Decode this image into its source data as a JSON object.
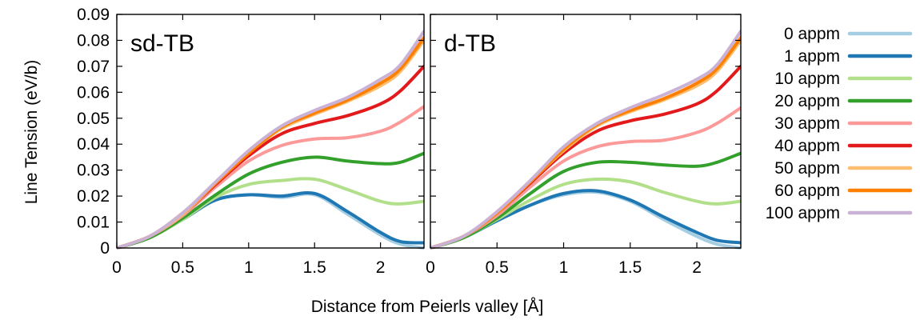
{
  "chart_data": {
    "type": "line",
    "xlabel": "Distance from Peierls valley [Å]",
    "ylabel": "Line Tension (eV/b)",
    "xlim": [
      0,
      2.33
    ],
    "ylim": [
      0,
      0.09
    ],
    "x_ticks": [
      0,
      0.5,
      1,
      1.5,
      2
    ],
    "x_tick_labels": [
      "0",
      "0.5",
      "1",
      "1.5",
      "2"
    ],
    "y_ticks": [
      0,
      0.01,
      0.02,
      0.03,
      0.04,
      0.05,
      0.06,
      0.07,
      0.08,
      0.09
    ],
    "y_tick_labels": [
      "0",
      "0.01",
      "0.02",
      "0.03",
      "0.04",
      "0.05",
      "0.06",
      "0.07",
      "0.08",
      "0.09"
    ],
    "grid": false,
    "legend_position": "right",
    "series_styles": [
      {
        "name": "0 appm",
        "color": "#a6cee3"
      },
      {
        "name": "1 appm",
        "color": "#1f78b4"
      },
      {
        "name": "10 appm",
        "color": "#b2df8a"
      },
      {
        "name": "20 appm",
        "color": "#33a02c"
      },
      {
        "name": "30 appm",
        "color": "#fb9a99"
      },
      {
        "name": "40 appm",
        "color": "#e31a1c"
      },
      {
        "name": "50 appm",
        "color": "#fdbf6f"
      },
      {
        "name": "60 appm",
        "color": "#ff7f00"
      },
      {
        "name": "100 appm",
        "color": "#cab2d6"
      }
    ],
    "panels": [
      {
        "title": "sd-TB",
        "x": [
          0,
          0.25,
          0.5,
          0.75,
          1.0,
          1.25,
          1.5,
          1.75,
          2.0,
          2.15,
          2.33
        ],
        "series": [
          {
            "name": "0 appm",
            "values": [
              0,
              0.004,
              0.011,
              0.0185,
              0.0205,
              0.0195,
              0.0205,
              0.013,
              0.005,
              0.0015,
              0
            ]
          },
          {
            "name": "1 appm",
            "values": [
              0,
              0.004,
              0.011,
              0.0185,
              0.0205,
              0.02,
              0.021,
              0.014,
              0.006,
              0.0025,
              0.002
            ]
          },
          {
            "name": "10 appm",
            "values": [
              0,
              0.004,
              0.011,
              0.0195,
              0.0245,
              0.026,
              0.0265,
              0.0225,
              0.018,
              0.017,
              0.018
            ]
          },
          {
            "name": "20 appm",
            "values": [
              0,
              0.004,
              0.0115,
              0.0205,
              0.0285,
              0.033,
              0.035,
              0.0335,
              0.0325,
              0.033,
              0.0365
            ]
          },
          {
            "name": "30 appm",
            "values": [
              0,
              0.0045,
              0.0125,
              0.0235,
              0.0335,
              0.0395,
              0.042,
              0.0425,
              0.045,
              0.0485,
              0.0545
            ]
          },
          {
            "name": "40 appm",
            "values": [
              0,
              0.0045,
              0.013,
              0.0245,
              0.0355,
              0.044,
              0.048,
              0.051,
              0.0555,
              0.0605,
              0.07
            ]
          },
          {
            "name": "50 appm",
            "values": [
              0,
              0.0045,
              0.013,
              0.025,
              0.0365,
              0.046,
              0.0515,
              0.0565,
              0.0625,
              0.068,
              0.08
            ]
          },
          {
            "name": "60 appm",
            "values": [
              0,
              0.0045,
              0.0135,
              0.025,
              0.0365,
              0.0465,
              0.052,
              0.057,
              0.0635,
              0.069,
              0.081
            ]
          },
          {
            "name": "100 appm",
            "values": [
              0,
              0.0045,
              0.0135,
              0.0255,
              0.0375,
              0.047,
              0.053,
              0.058,
              0.065,
              0.0705,
              0.0835
            ]
          }
        ]
      },
      {
        "title": "d-TB",
        "x": [
          0,
          0.25,
          0.5,
          0.75,
          1.0,
          1.25,
          1.5,
          1.75,
          2.0,
          2.15,
          2.33
        ],
        "series": [
          {
            "name": "0 appm",
            "values": [
              0,
              0.004,
              0.0105,
              0.0165,
              0.0205,
              0.0215,
              0.018,
              0.011,
              0.0045,
              0.0015,
              0
            ]
          },
          {
            "name": "1 appm",
            "values": [
              0,
              0.004,
              0.0105,
              0.0165,
              0.021,
              0.022,
              0.0185,
              0.012,
              0.006,
              0.003,
              0.002
            ]
          },
          {
            "name": "10 appm",
            "values": [
              0,
              0.004,
              0.011,
              0.0185,
              0.0245,
              0.0265,
              0.0255,
              0.0215,
              0.018,
              0.017,
              0.018
            ]
          },
          {
            "name": "20 appm",
            "values": [
              0,
              0.004,
              0.0115,
              0.021,
              0.0295,
              0.033,
              0.033,
              0.032,
              0.0315,
              0.033,
              0.0365
            ]
          },
          {
            "name": "30 appm",
            "values": [
              0,
              0.0045,
              0.0125,
              0.0235,
              0.0335,
              0.039,
              0.041,
              0.0415,
              0.0445,
              0.048,
              0.054
            ]
          },
          {
            "name": "40 appm",
            "values": [
              0,
              0.0045,
              0.0135,
              0.025,
              0.0365,
              0.045,
              0.049,
              0.0515,
              0.0555,
              0.0605,
              0.07
            ]
          },
          {
            "name": "50 appm",
            "values": [
              0,
              0.0045,
              0.0135,
              0.0255,
              0.0375,
              0.047,
              0.0525,
              0.057,
              0.0625,
              0.068,
              0.08
            ]
          },
          {
            "name": "60 appm",
            "values": [
              0,
              0.0045,
              0.0135,
              0.0255,
              0.038,
              0.0475,
              0.053,
              0.0575,
              0.0635,
              0.069,
              0.081
            ]
          },
          {
            "name": "100 appm",
            "values": [
              0,
              0.0045,
              0.014,
              0.026,
              0.039,
              0.048,
              0.054,
              0.059,
              0.065,
              0.0705,
              0.0835
            ]
          }
        ]
      }
    ]
  }
}
